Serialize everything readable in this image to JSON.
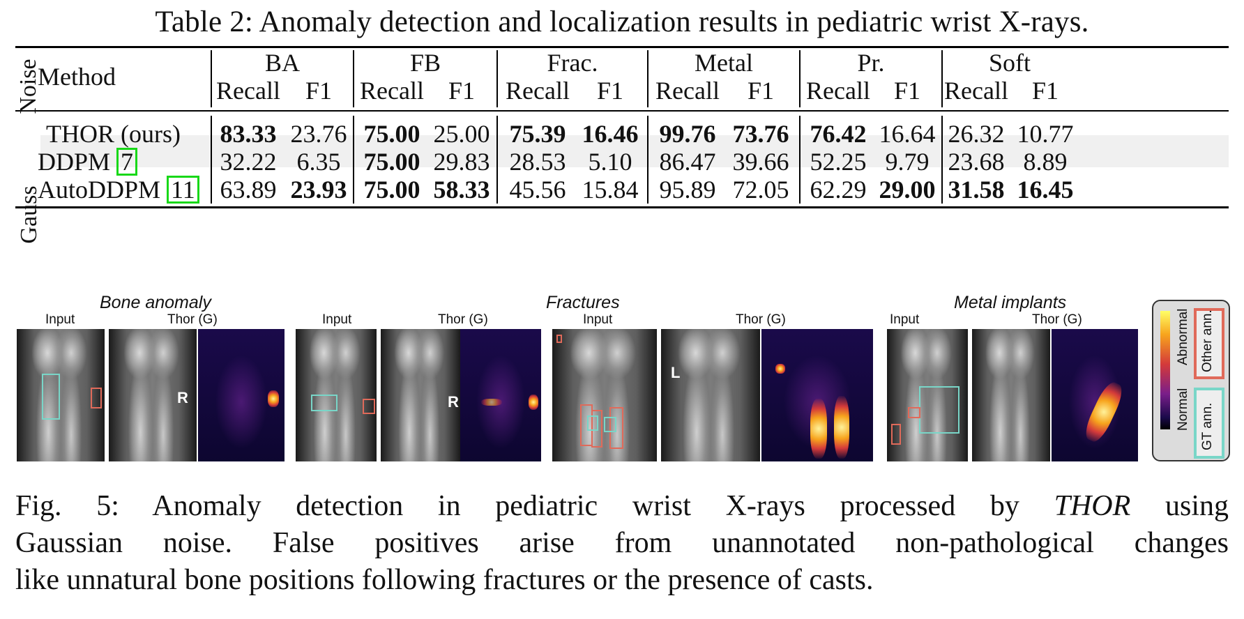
{
  "table": {
    "title": "Table 2: Anomaly detection and localization results in pediatric wrist X-rays.",
    "noise_header": "Noise",
    "method_header": "Method",
    "groups": [
      "BA",
      "FB",
      "Frac.",
      "Metal",
      "Pr.",
      "Soft"
    ],
    "sub_headers": [
      "Recall",
      "F1"
    ],
    "noise_value": "Gauss",
    "rows": [
      {
        "method": "THOR (ours)",
        "ref": "",
        "values": [
          "83.33",
          "23.76",
          "75.00",
          "25.00",
          "75.39",
          "16.46",
          "99.76",
          "73.76",
          "76.42",
          "16.64",
          "26.32",
          "10.77"
        ],
        "bold": [
          true,
          false,
          true,
          false,
          true,
          true,
          true,
          true,
          true,
          false,
          false,
          false
        ]
      },
      {
        "method": "DDPM ",
        "ref": "7",
        "values": [
          "32.22",
          "6.35",
          "75.00",
          "29.83",
          "28.53",
          "5.10",
          "86.47",
          "39.66",
          "52.25",
          "9.79",
          "23.68",
          "8.89"
        ],
        "bold": [
          false,
          false,
          true,
          false,
          false,
          false,
          false,
          false,
          false,
          false,
          false,
          false
        ]
      },
      {
        "method": "AutoDDPM ",
        "ref": "11",
        "values": [
          "63.89",
          "23.93",
          "75.00",
          "58.33",
          "45.56",
          "15.84",
          "95.89",
          "72.05",
          "62.29",
          "29.00",
          "31.58",
          "16.45"
        ],
        "bold": [
          false,
          true,
          true,
          true,
          false,
          false,
          false,
          false,
          false,
          true,
          true,
          true
        ]
      }
    ]
  },
  "figure": {
    "sections": [
      "Bone anomaly",
      "Fractures",
      "Metal implants"
    ],
    "input_label": "Input",
    "thor_label": "Thor (G)",
    "side_letters": [
      "R",
      "R",
      "L"
    ],
    "legend": {
      "abnormal": "Abnormal",
      "normal": "Normal",
      "other_ann": "Other ann.",
      "gt_ann": "GT ann.",
      "gt_color": "#79d6c8",
      "other_color": "#e06a5a"
    }
  },
  "caption": {
    "lines": [
      "Fig. 5: Anomaly detection in pediatric wrist X-rays processed by THOR using",
      "Gaussian noise. False positives arise from unannotated non-pathological changes",
      "like unnatural bone positions following fractures or the presence of casts."
    ]
  }
}
